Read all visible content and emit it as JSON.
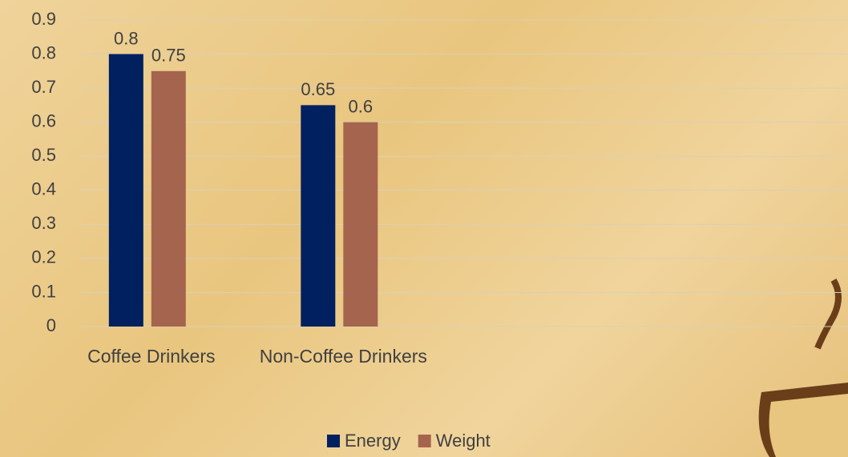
{
  "chart_data": {
    "type": "bar",
    "categories": [
      "Coffee Drinkers",
      "Non-Coffee Drinkers",
      null,
      null
    ],
    "series": [
      {
        "name": "Energy",
        "color": "#002060",
        "values": [
          0.8,
          0.65,
          null,
          null
        ]
      },
      {
        "name": "Weight",
        "color": "#a5644e",
        "values": [
          0.75,
          0.6,
          null,
          null
        ]
      }
    ],
    "ylim": [
      0,
      0.9
    ],
    "yticks": [
      0,
      0.1,
      0.2,
      0.3,
      0.4,
      0.5,
      0.6,
      0.7,
      0.8,
      0.9
    ],
    "grid": true,
    "legend": "bottom"
  }
}
